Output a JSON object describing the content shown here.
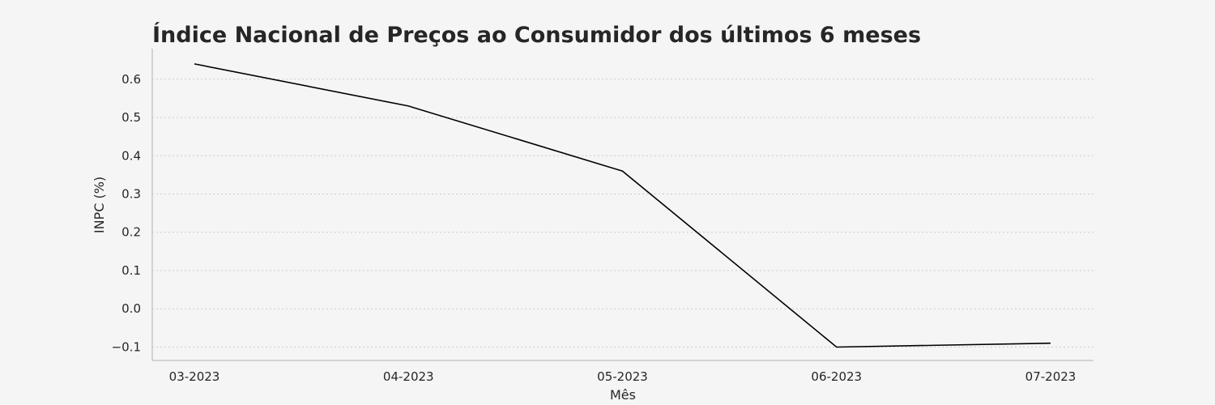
{
  "chart_data": {
    "type": "line",
    "title": "Índice Nacional de Preços ao Consumidor dos últimos 6 meses",
    "xlabel": "Mês",
    "ylabel": "INPC (%)",
    "categories": [
      "03-2023",
      "04-2023",
      "05-2023",
      "06-2023",
      "07-2023"
    ],
    "series": [
      {
        "values": [
          0.64,
          0.53,
          0.36,
          -0.1,
          -0.09
        ],
        "color": "#000000"
      }
    ],
    "ylim": [
      -0.135,
      0.68
    ],
    "yticks": [
      0.6,
      0.5,
      0.4,
      0.3,
      0.2,
      0.1,
      0.0,
      -0.1
    ],
    "ytick_labels": [
      "0.6",
      "0.5",
      "0.4",
      "0.3",
      "0.2",
      "0.1",
      "0.0",
      "−0.1"
    ],
    "grid": "horizontal dotted",
    "legend": "none"
  }
}
